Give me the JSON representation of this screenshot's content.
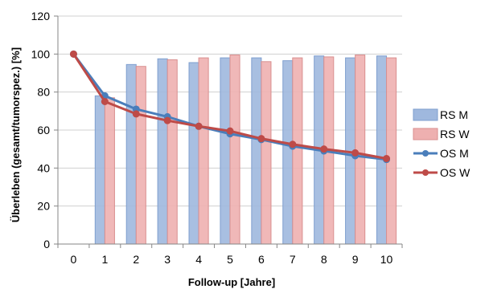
{
  "chart_data": {
    "type": "bar",
    "title": "",
    "xlabel": "Follow-up [Jahre]",
    "ylabel": "Überleben (gesamt/tumorspez.) [%]",
    "ylim": [
      0,
      120
    ],
    "yticks": [
      0,
      20,
      40,
      60,
      80,
      100,
      120
    ],
    "categories": [
      "0",
      "1",
      "2",
      "3",
      "4",
      "5",
      "6",
      "7",
      "8",
      "9",
      "10"
    ],
    "grid": true,
    "legend_position": "right",
    "series": [
      {
        "name": "RS M",
        "kind": "bar",
        "color": "#9fb8de",
        "stroke": "#7f9fcf",
        "values": [
          null,
          78,
          94.5,
          97.5,
          95.5,
          98,
          98,
          96.5,
          99,
          98,
          99
        ]
      },
      {
        "name": "RS W",
        "kind": "bar",
        "color": "#eeb0b0",
        "stroke": "#d98f8f",
        "values": [
          null,
          77,
          93.5,
          97,
          98,
          99.5,
          96,
          98,
          98.5,
          99.5,
          98
        ]
      },
      {
        "name": "OS M",
        "kind": "line",
        "color": "#4a7ebb",
        "values": [
          100,
          78,
          71,
          67,
          62,
          58,
          55,
          51.5,
          49,
          46.5,
          44.5
        ]
      },
      {
        "name": "OS W",
        "kind": "line",
        "color": "#be4b48",
        "values": [
          100,
          75,
          68.5,
          65,
          62,
          59.5,
          55.5,
          52.5,
          50,
          48,
          45
        ]
      }
    ]
  }
}
